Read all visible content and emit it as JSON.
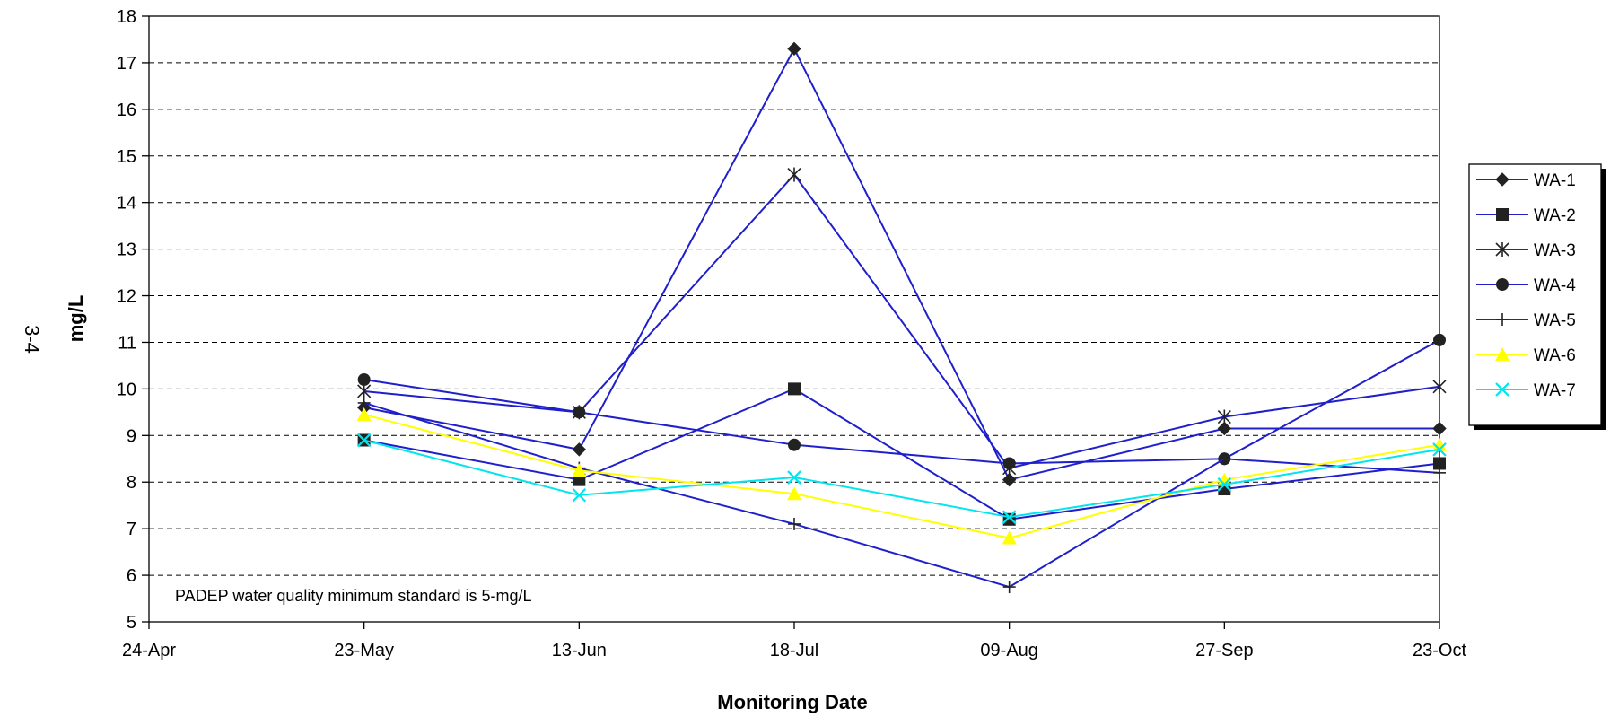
{
  "page_label": "3-4",
  "chart_data": {
    "type": "line",
    "title": "",
    "xlabel": "Monitoring Date",
    "ylabel": "mg/L",
    "ylim": [
      5,
      18
    ],
    "yticks": [
      5,
      6,
      7,
      8,
      9,
      10,
      11,
      12,
      13,
      14,
      15,
      16,
      17,
      18
    ],
    "grid": "horizontal dashed",
    "legend_position": "right",
    "categories": [
      "24-Apr",
      "23-May",
      "13-Jun",
      "18-Jul",
      "09-Aug",
      "27-Sep",
      "23-Oct"
    ],
    "annotation": "PADEP water quality minimum standard is 5-mg/L",
    "series": [
      {
        "name": "WA-1",
        "color": "#1f1fcc",
        "marker": "diamond",
        "values": [
          null,
          9.6,
          8.7,
          17.3,
          8.05,
          9.15,
          9.15
        ]
      },
      {
        "name": "WA-2",
        "color": "#1f1fcc",
        "marker": "square",
        "values": [
          null,
          8.9,
          8.05,
          10.0,
          7.2,
          7.85,
          8.4
        ]
      },
      {
        "name": "WA-3",
        "color": "#1f1fcc",
        "marker": "asterisk",
        "values": [
          null,
          9.95,
          9.5,
          14.6,
          8.3,
          9.4,
          10.05
        ]
      },
      {
        "name": "WA-4",
        "color": "#1f1fcc",
        "marker": "circle",
        "values": [
          null,
          10.2,
          9.5,
          8.8,
          8.4,
          8.5,
          11.05
        ]
      },
      {
        "name": "WA-5",
        "color": "#1f1fcc",
        "marker": "plus",
        "values": [
          null,
          9.7,
          8.3,
          7.1,
          5.75,
          8.5,
          8.2
        ]
      },
      {
        "name": "WA-6",
        "color": "#ffff00",
        "marker": "triangle",
        "values": [
          null,
          9.45,
          8.25,
          7.75,
          6.8,
          8.05,
          8.8
        ]
      },
      {
        "name": "WA-7",
        "color": "#00e5ee",
        "marker": "x",
        "values": [
          null,
          8.9,
          7.72,
          8.1,
          7.25,
          7.95,
          8.7
        ]
      }
    ]
  }
}
